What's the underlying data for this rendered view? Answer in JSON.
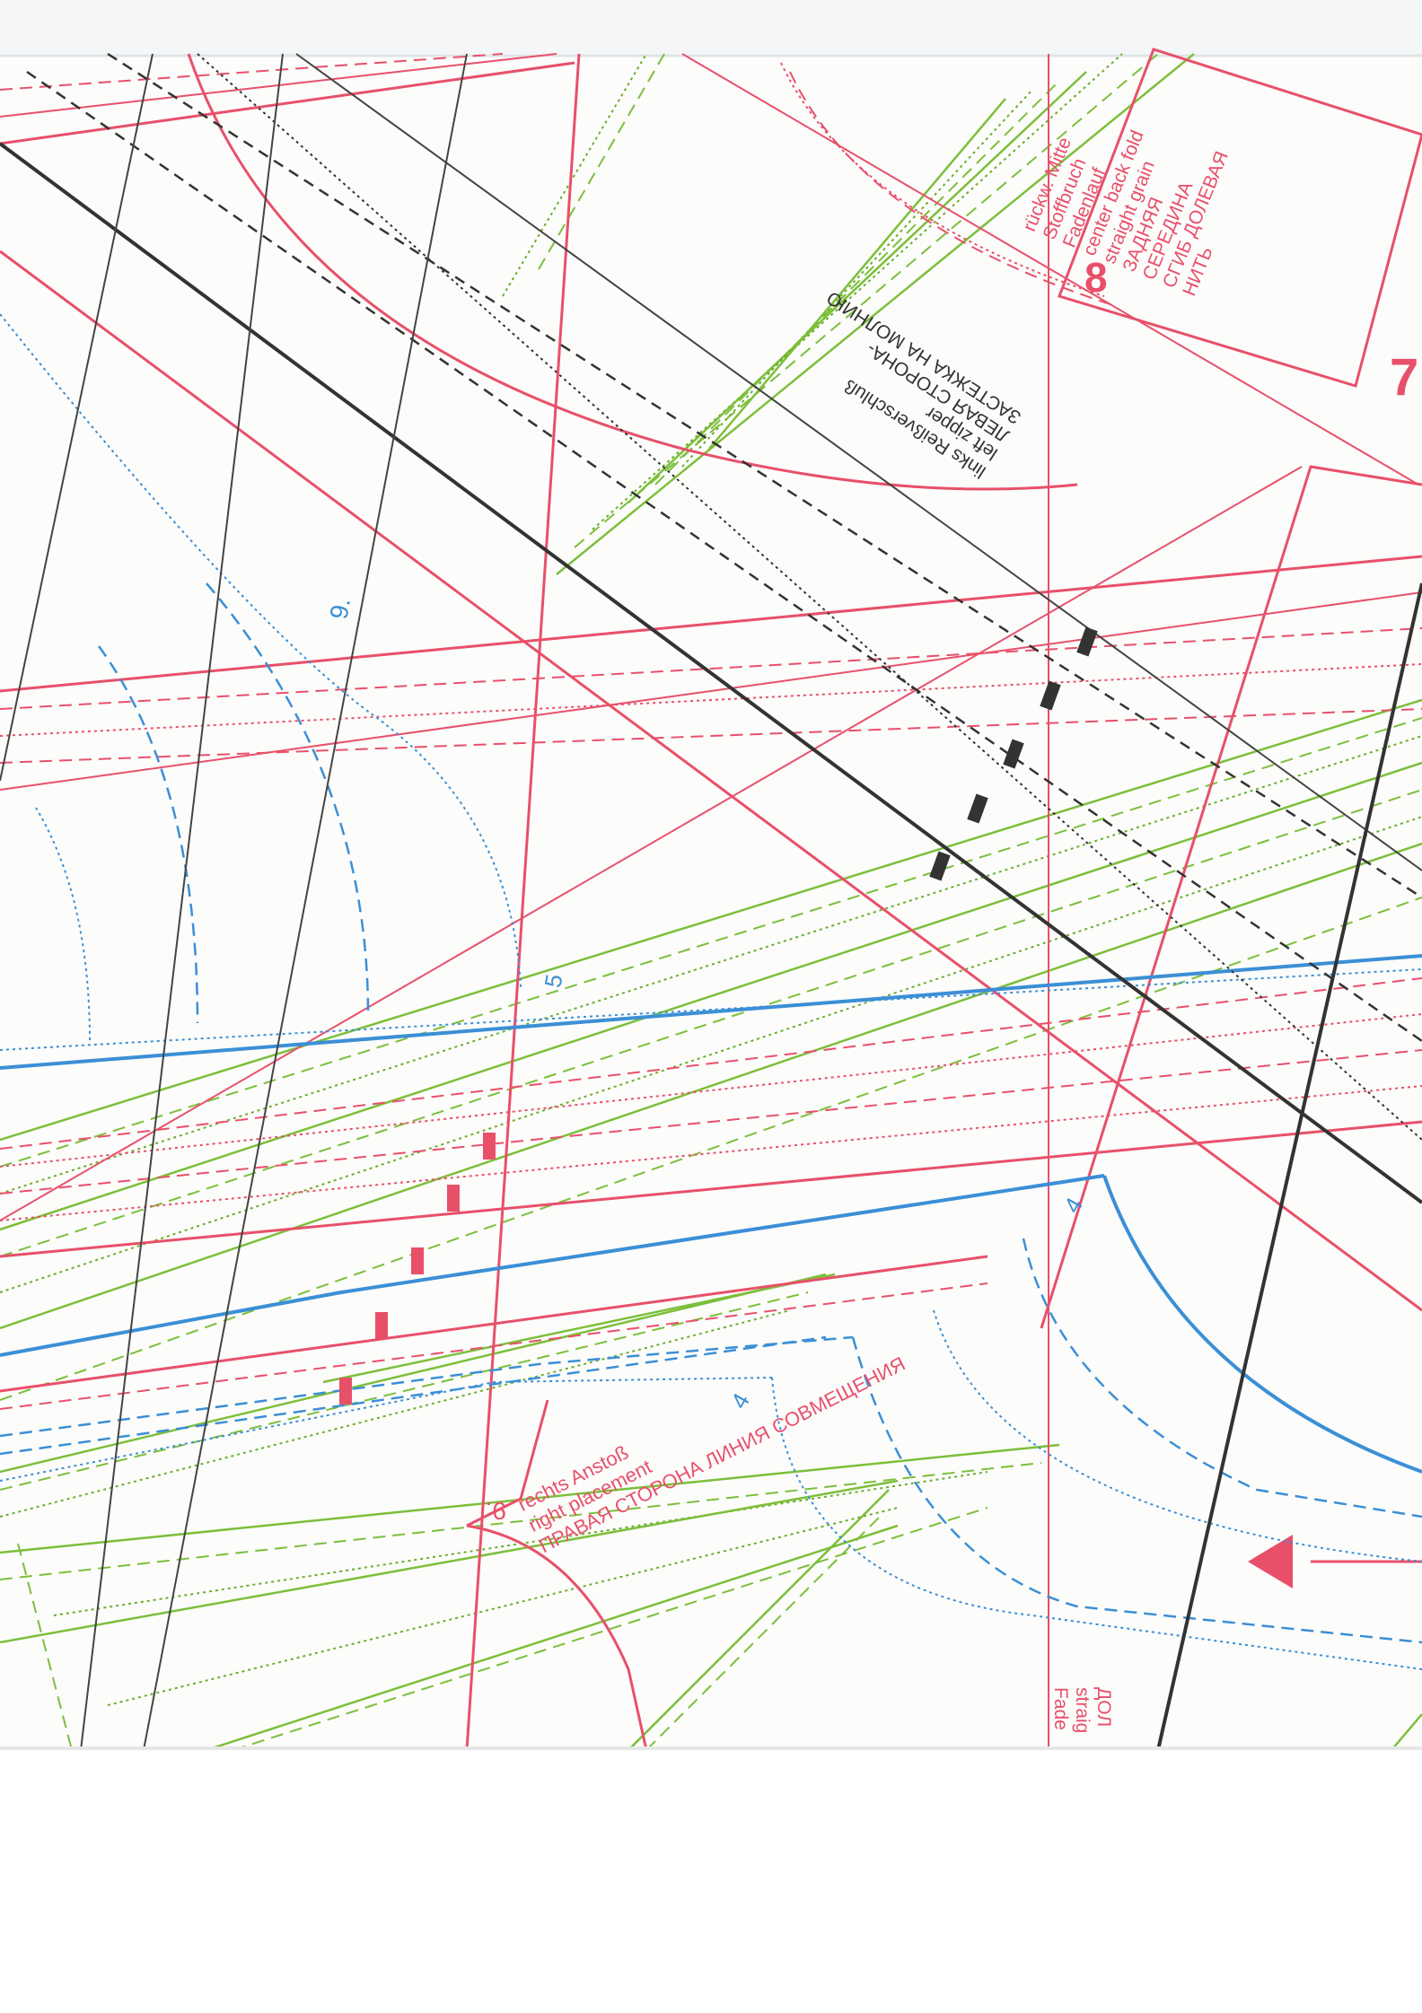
{
  "document": {
    "type": "sewing pattern sheet (scan)",
    "colors": {
      "red": "#e8506a",
      "green": "#7cbf3a",
      "blue": "#3b8fd6",
      "black": "#333333",
      "paper": "#fcfcfb"
    }
  },
  "labels": {
    "back_center": {
      "piece_number": "8",
      "lines": [
        "rückw. Mitte",
        "Stoffbruch",
        "Fadenlauf",
        "center back fold",
        "straight grain",
        "ЗАДНЯЯ",
        "СЕРЕДИНА",
        "СГИБ ДОЛЕВАЯ",
        "НИТЬ"
      ]
    },
    "piece_7_number": "7",
    "zipper": {
      "lines": [
        "links Reißverschluß",
        "left zipper",
        "ЛЕВАЯ СТОРОНА-",
        "ЗАСТЕЖКА НА МОЛНИЮ"
      ]
    },
    "placement": {
      "lines": [
        "rechts Anstoß",
        "right placement",
        "ПРАВАЯ СТОРОНА ЛИНИЯ СОВМЕЩЕНИЯ"
      ]
    },
    "grain_bottom": {
      "lines": [
        "Fade",
        "straig",
        "ДОЛ"
      ]
    },
    "size_marks": {
      "m9_top": "9.",
      "m5": "5",
      "m4_right": "4",
      "m4_left": "4",
      "m9_bottom": "9."
    }
  }
}
